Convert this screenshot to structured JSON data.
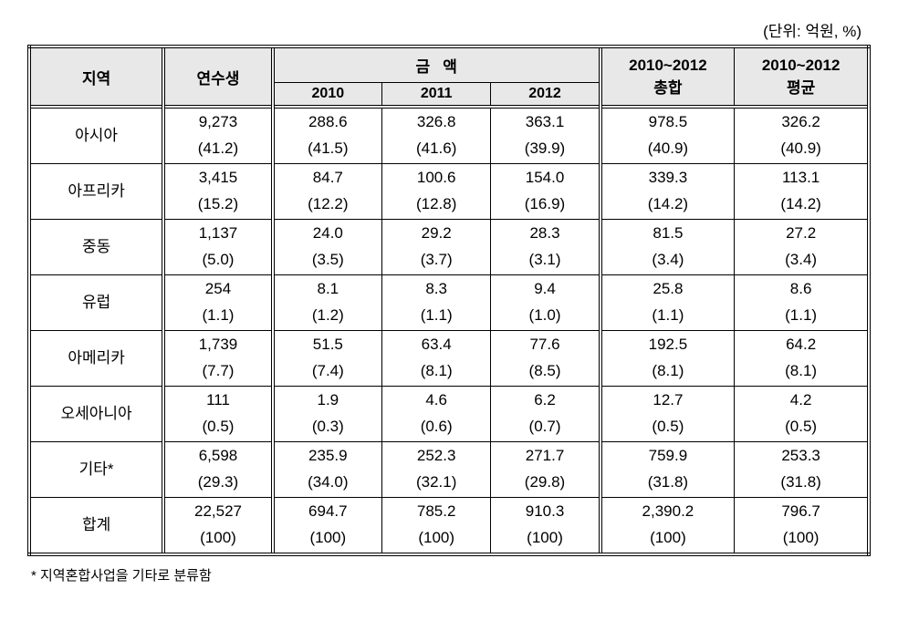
{
  "unit_label": "(단위: 억원, %)",
  "headers": {
    "region": "지역",
    "trainee": "연수생",
    "amount_group": "금   액",
    "y2010": "2010",
    "y2011": "2011",
    "y2012": "2012",
    "total": "2010~2012\n총합",
    "total_line1": "2010~2012",
    "total_line2": "총합",
    "avg_line1": "2010~2012",
    "avg_line2": "평균"
  },
  "rows": [
    {
      "region": "아시아",
      "bold": true,
      "trainee_v": "9,273",
      "trainee_p": "(41.2)",
      "y2010_v": "288.6",
      "y2010_p": "(41.5)",
      "y2011_v": "326.8",
      "y2011_p": "(41.6)",
      "y2012_v": "363.1",
      "y2012_p": "(39.9)",
      "total_v": "978.5",
      "total_p": "(40.9)",
      "avg_v": "326.2",
      "avg_p": "(40.9)"
    },
    {
      "region": "아프리카",
      "bold": true,
      "trainee_v": "3,415",
      "trainee_p": "(15.2)",
      "y2010_v": "84.7",
      "y2010_p": "(12.2)",
      "y2011_v": "100.6",
      "y2011_p": "(12.8)",
      "y2012_v": "154.0",
      "y2012_p": "(16.9)",
      "total_v": "339.3",
      "total_p": "(14.2)",
      "avg_v": "113.1",
      "avg_p": "(14.2)"
    },
    {
      "region": "중동",
      "bold": false,
      "trainee_v": "1,137",
      "trainee_p": "(5.0)",
      "y2010_v": "24.0",
      "y2010_p": "(3.5)",
      "y2011_v": "29.2",
      "y2011_p": "(3.7)",
      "y2012_v": "28.3",
      "y2012_p": "(3.1)",
      "total_v": "81.5",
      "total_p": "(3.4)",
      "avg_v": "27.2",
      "avg_p": "(3.4)"
    },
    {
      "region": "유럽",
      "bold": false,
      "trainee_v": "254",
      "trainee_p": "(1.1)",
      "y2010_v": "8.1",
      "y2010_p": "(1.2)",
      "y2011_v": "8.3",
      "y2011_p": "(1.1)",
      "y2012_v": "9.4",
      "y2012_p": "(1.0)",
      "total_v": "25.8",
      "total_p": "(1.1)",
      "avg_v": "8.6",
      "avg_p": "(1.1)"
    },
    {
      "region": "아메리카",
      "bold": false,
      "trainee_v": "1,739",
      "trainee_p": "(7.7)",
      "y2010_v": "51.5",
      "y2010_p": "(7.4)",
      "y2011_v": "63.4",
      "y2011_p": "(8.1)",
      "y2012_v": "77.6",
      "y2012_p": "(8.5)",
      "total_v": "192.5",
      "total_p": "(8.1)",
      "avg_v": "64.2",
      "avg_p": "(8.1)"
    },
    {
      "region": "오세아니아",
      "bold": false,
      "trainee_v": "111",
      "trainee_p": "(0.5)",
      "y2010_v": "1.9",
      "y2010_p": "(0.3)",
      "y2011_v": "4.6",
      "y2011_p": "(0.6)",
      "y2012_v": "6.2",
      "y2012_p": "(0.7)",
      "total_v": "12.7",
      "total_p": "(0.5)",
      "avg_v": "4.2",
      "avg_p": "(0.5)"
    },
    {
      "region": "기타*",
      "bold": false,
      "trainee_v": "6,598",
      "trainee_p": "(29.3)",
      "y2010_v": "235.9",
      "y2010_p": "(34.0)",
      "y2011_v": "252.3",
      "y2011_p": "(32.1)",
      "y2012_v": "271.7",
      "y2012_p": "(29.8)",
      "total_v": "759.9",
      "total_p": "(31.8)",
      "avg_v": "253.3",
      "avg_p": "(31.8)"
    },
    {
      "region": "합계",
      "bold": false,
      "trainee_v": "22,527",
      "trainee_p": "(100)",
      "y2010_v": "694.7",
      "y2010_p": "(100)",
      "y2011_v": "785.2",
      "y2011_p": "(100)",
      "y2012_v": "910.3",
      "y2012_p": "(100)",
      "total_v": "2,390.2",
      "total_p": "(100)",
      "avg_v": "796.7",
      "avg_p": "(100)"
    }
  ],
  "footnote": "* 지역혼합사업을 기타로 분류함",
  "col_widths": [
    "16%",
    "13%",
    "13%",
    "13%",
    "13%",
    "16%",
    "16%"
  ],
  "colors": {
    "header_bg": "#e8e8e8",
    "border": "#000000",
    "text": "#000000",
    "bg": "#ffffff"
  }
}
